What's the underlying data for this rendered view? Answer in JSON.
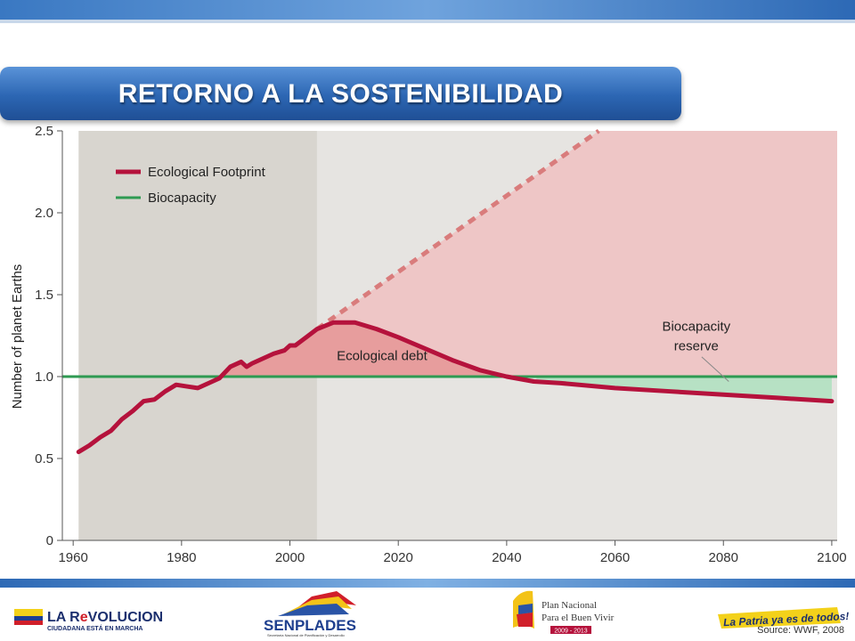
{
  "slide": {
    "title": "RETORNO A LA SOSTENIBILIDAD",
    "source": "Source: WWF, 2008",
    "logos": {
      "left": {
        "line1": "LA R",
        "line1b": "VOLUCION",
        "line2": "CIUDADANA ESTÁ EN MARCHA"
      },
      "senplades": {
        "name": "SENPLADES",
        "subtitle": "Secretaría Nacional de Planificación y Desarrollo"
      },
      "plan": {
        "line1": "Plan Nacional",
        "line2": "Para el Buen Vivir",
        "years": "2009 - 2013"
      },
      "patria": {
        "text": "La Patria ya es de todos!"
      }
    }
  },
  "chart_data": {
    "type": "line",
    "ylabel": "Number of planet Earths",
    "xlabel": "",
    "xlim": [
      1958,
      2101
    ],
    "ylim": [
      0,
      2.5
    ],
    "x_ticks": [
      1960,
      1980,
      2000,
      2020,
      2040,
      2060,
      2080,
      2100
    ],
    "x_tick_labels": [
      "1960",
      "1980",
      "2000",
      "2020",
      "2040",
      "2060",
      "2080",
      "2100"
    ],
    "y_ticks": [
      0,
      0.5,
      1.0,
      1.5,
      2.0,
      2.5
    ],
    "y_tick_labels": [
      "0",
      "0.5",
      "1.0",
      "1.5",
      "2.0",
      "2.5"
    ],
    "legend": {
      "placement": "top-left",
      "entries": [
        {
          "label": "Ecological Footprint",
          "color": "#b5123c"
        },
        {
          "label": "Biocapacity",
          "color": "#2e9a52"
        }
      ]
    },
    "historical_range": [
      1961,
      2005
    ],
    "series": [
      {
        "name": "Ecological Footprint",
        "style": "solid",
        "color": "#b5123c",
        "x": [
          1961,
          1963,
          1965,
          1967,
          1969,
          1971,
          1973,
          1975,
          1977,
          1979,
          1981,
          1983,
          1985,
          1987,
          1989,
          1991,
          1992,
          1993,
          1995,
          1997,
          1999,
          2000,
          2001,
          2003,
          2005,
          2008,
          2012,
          2016,
          2020,
          2025,
          2030,
          2035,
          2040,
          2045,
          2050,
          2060,
          2070,
          2080,
          2090,
          2100
        ],
        "y": [
          0.54,
          0.58,
          0.63,
          0.67,
          0.74,
          0.79,
          0.85,
          0.86,
          0.91,
          0.95,
          0.94,
          0.93,
          0.96,
          0.99,
          1.06,
          1.09,
          1.06,
          1.08,
          1.11,
          1.14,
          1.16,
          1.19,
          1.19,
          1.24,
          1.29,
          1.33,
          1.33,
          1.29,
          1.24,
          1.17,
          1.1,
          1.04,
          1.0,
          0.97,
          0.96,
          0.93,
          0.91,
          0.89,
          0.87,
          0.85
        ]
      },
      {
        "name": "Ecological Footprint",
        "style": "dashed",
        "color": "#d97c7c",
        "x": [
          2005,
          2057
        ],
        "y": [
          1.29,
          2.5
        ]
      },
      {
        "name": "Biocapacity",
        "style": "solid",
        "color": "#2e9a52",
        "x": [
          1958,
          2101
        ],
        "y": [
          1.0,
          1.0
        ]
      }
    ],
    "annotations": [
      {
        "text": "Ecological debt",
        "x": 2017,
        "y": 1.1
      },
      {
        "text": "Biocapacity",
        "x": 2075,
        "y": 1.28
      },
      {
        "text": "reserve",
        "x": 2075,
        "y": 1.16
      }
    ],
    "colors": {
      "historical_bg": "#d8d5cf",
      "projection_bg": "#e6e4e1",
      "overshoot_fill": "#eec6c6",
      "debt_fill": "#e79d9d",
      "reserve_fill": "#b7e1c4"
    }
  }
}
